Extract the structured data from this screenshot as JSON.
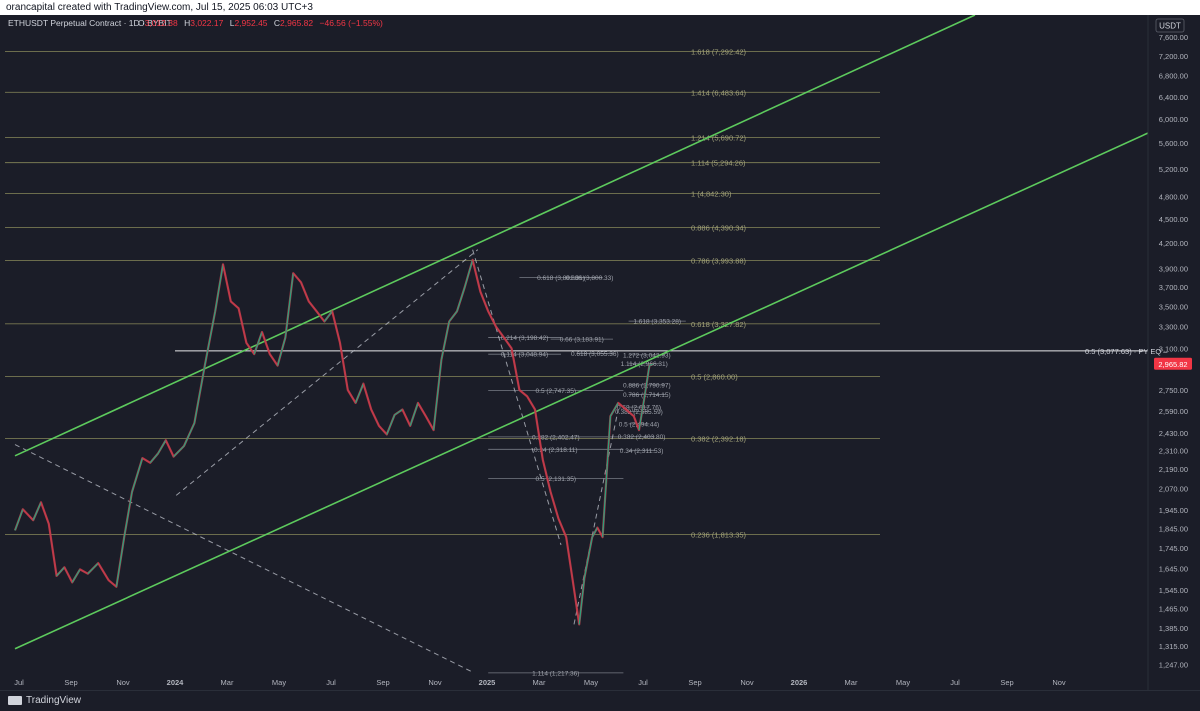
{
  "attribution": "orancapital created with TradingView.com, Jul 15, 2025 06:03 UTC+3",
  "footer_brand": "TradingView",
  "chart_data": {
    "type": "candlestick",
    "legend": {
      "symbol": "ETHUSDT Perpetual Contract · 1D · BYBIT",
      "open_label": "O",
      "open": "3,012.38",
      "high_label": "H",
      "high": "3,022.17",
      "low_label": "L",
      "low": "2,952.45",
      "close_label": "C",
      "close": "2,965.82",
      "change": "−46.56 (−1.55%)"
    },
    "currency": "USDT",
    "last_price": "2,965.82",
    "y_scale": "log",
    "ylim": [
      1210,
      8100
    ],
    "y_ticks": [
      {
        "v": 7600,
        "label": "7,600.00"
      },
      {
        "v": 7200,
        "label": "7,200.00"
      },
      {
        "v": 6800,
        "label": "6,800.00"
      },
      {
        "v": 6400,
        "label": "6,400.00"
      },
      {
        "v": 6000,
        "label": "6,000.00"
      },
      {
        "v": 5600,
        "label": "5,600.00"
      },
      {
        "v": 5200,
        "label": "5,200.00"
      },
      {
        "v": 4800,
        "label": "4,800.00"
      },
      {
        "v": 4500,
        "label": "4,500.00"
      },
      {
        "v": 4200,
        "label": "4,200.00"
      },
      {
        "v": 3900,
        "label": "3,900.00"
      },
      {
        "v": 3700,
        "label": "3,700.00"
      },
      {
        "v": 3500,
        "label": "3,500.00"
      },
      {
        "v": 3300,
        "label": "3,300.00"
      },
      {
        "v": 3100,
        "label": "3,100.00"
      },
      {
        "v": 2750,
        "label": "2,750.00"
      },
      {
        "v": 2590,
        "label": "2,590.00"
      },
      {
        "v": 2430,
        "label": "2,430.00"
      },
      {
        "v": 2310,
        "label": "2,310.00"
      },
      {
        "v": 2190,
        "label": "2,190.00"
      },
      {
        "v": 2070,
        "label": "2,070.00"
      },
      {
        "v": 1945,
        "label": "1,945.00"
      },
      {
        "v": 1845,
        "label": "1,845.00"
      },
      {
        "v": 1745,
        "label": "1,745.00"
      },
      {
        "v": 1645,
        "label": "1,645.00"
      },
      {
        "v": 1545,
        "label": "1,545.00"
      },
      {
        "v": 1465,
        "label": "1,465.00"
      },
      {
        "v": 1385,
        "label": "1,385.00"
      },
      {
        "v": 1315,
        "label": "1,315.00"
      },
      {
        "v": 1247,
        "label": "1,247.00"
      }
    ],
    "x_ticks": [
      {
        "m": 0,
        "label": "Jul"
      },
      {
        "m": 2,
        "label": "Sep"
      },
      {
        "m": 4,
        "label": "Nov"
      },
      {
        "m": 6,
        "label": "2024"
      },
      {
        "m": 8,
        "label": "Mar"
      },
      {
        "m": 10,
        "label": "May"
      },
      {
        "m": 12,
        "label": "Jul"
      },
      {
        "m": 14,
        "label": "Sep"
      },
      {
        "m": 16,
        "label": "Nov"
      },
      {
        "m": 18,
        "label": "2025"
      },
      {
        "m": 20,
        "label": "Mar"
      },
      {
        "m": 22,
        "label": "May"
      },
      {
        "m": 24,
        "label": "Jul"
      },
      {
        "m": 26,
        "label": "Sep"
      },
      {
        "m": 28,
        "label": "Nov"
      },
      {
        "m": 30,
        "label": "2026"
      },
      {
        "m": 32,
        "label": "Mar"
      },
      {
        "m": 34,
        "label": "May"
      },
      {
        "m": 36,
        "label": "Jul"
      },
      {
        "m": 38,
        "label": "Sep"
      },
      {
        "m": 40,
        "label": "Nov"
      }
    ],
    "fib_levels_main": [
      {
        "v": 7292.42,
        "label": "1.618 (7,292.42)"
      },
      {
        "v": 6483.64,
        "label": "1.414 (6,483.64)"
      },
      {
        "v": 5690.72,
        "label": "1.214 (5,690.72)"
      },
      {
        "v": 5294.26,
        "label": "1.114 (5,294.26)"
      },
      {
        "v": 4842.3,
        "label": "1 (4,842.30)"
      },
      {
        "v": 4390.34,
        "label": "0.886 (4,390.34)"
      },
      {
        "v": 3993.88,
        "label": "0.786 (3,993.88)"
      },
      {
        "v": 3327.82,
        "label": "0.618 (3,327.82)"
      },
      {
        "v": 2860.0,
        "label": "0.5 (2,860.00)"
      },
      {
        "v": 2392.18,
        "label": "0.382 (2,392.18)"
      },
      {
        "v": 1813.35,
        "label": "0.236 (1,813.35)"
      }
    ],
    "fib_levels_inner": [
      {
        "v": 3801.31,
        "label": "0.618 (3,801.31)",
        "m0": 19.4,
        "m1": 22.6
      },
      {
        "v": 3800.33,
        "label": "0.886 (3,800.33)",
        "m0": 21.6,
        "m1": 22.6
      },
      {
        "v": 3353.28,
        "label": "1.618 (3,353.28)",
        "m0": 23.6,
        "m1": 25.8
      },
      {
        "v": 3198.42,
        "label": "0.214 (3,198.42)",
        "m0": 18.2,
        "m1": 21.0
      },
      {
        "v": 3183.91,
        "label": "0.66 (3,183.91)",
        "m0": 20.6,
        "m1": 23.0
      },
      {
        "v": 3048.94,
        "label": "0.114 (3,048.94)",
        "m0": 18.2,
        "m1": 21.0
      },
      {
        "v": 3055.36,
        "label": "0.618 (3,055.36)",
        "m0": 21.6,
        "m1": 23.0
      },
      {
        "v": 3042.93,
        "label": "1.272 (3,042.93)",
        "m0": 23.6,
        "m1": 25.0
      },
      {
        "v": 2966.31,
        "label": "1.114 (2,966.31)",
        "m0": 23.6,
        "m1": 24.8
      },
      {
        "v": 2790.97,
        "label": "0.886 (2,790.97)",
        "m0": 23.6,
        "m1": 25.0
      },
      {
        "v": 2747.35,
        "label": "0.5 (2,747.35)",
        "m0": 18.2,
        "m1": 23.4
      },
      {
        "v": 2714.15,
        "label": "0.786 (2,714.15)",
        "m0": 23.6,
        "m1": 25.0
      },
      {
        "v": 2617.76,
        "label": "0.68 (2,617.76)",
        "m0": 23.6,
        "m1": 24.4
      },
      {
        "v": 2585.59,
        "label": "0.382 (2,585.59)",
        "m0": 23.6,
        "m1": 24.4
      },
      {
        "v": 2494.44,
        "label": "0.5 (2,494.44)",
        "m0": 23.6,
        "m1": 24.4
      },
      {
        "v": 2402.47,
        "label": "0.382 (2,402.47)",
        "m0": 18.2,
        "m1": 23.4
      },
      {
        "v": 2403.8,
        "label": "0.382 (2,403.80)",
        "m0": 23.6,
        "m1": 24.6
      },
      {
        "v": 2318.11,
        "label": "0.34 (2,318.11)",
        "m0": 18.2,
        "m1": 23.4
      },
      {
        "v": 2311.53,
        "label": "0.34 (2,311.53)",
        "m0": 23.6,
        "m1": 24.6
      },
      {
        "v": 2131.35,
        "label": "0.5 (2,131.35)",
        "m0": 18.2,
        "m1": 23.4
      },
      {
        "v": 1217.36,
        "label": "1.114 (1,217.36)",
        "m0": 18.2,
        "m1": 23.4
      }
    ],
    "pyeq": {
      "v": 3077.63,
      "label": "0.5 (3,077.63) · PY EQ –"
    },
    "channel_lines": [
      {
        "m0": 0,
        "v0": 2275,
        "m1": 39,
        "v1": 8700
      },
      {
        "m0": 0,
        "v0": 1305,
        "m1": 44.5,
        "v1": 5950
      }
    ],
    "dashed_lines": [
      {
        "m0": 6.2,
        "v0": 2030,
        "m1": 17.8,
        "v1": 4120
      },
      {
        "m0": 0,
        "v0": 2350,
        "m1": 17.6,
        "v1": 1220
      },
      {
        "m0": 17.6,
        "v0": 4120,
        "m1": 21.0,
        "v1": 1760
      },
      {
        "m0": 21.5,
        "v0": 1400,
        "m1": 23.2,
        "v1": 2600
      }
    ],
    "price_path": [
      [
        0,
        1835
      ],
      [
        0.3,
        1950
      ],
      [
        0.7,
        1890
      ],
      [
        1.0,
        1990
      ],
      [
        1.3,
        1870
      ],
      [
        1.6,
        1610
      ],
      [
        1.9,
        1650
      ],
      [
        2.2,
        1580
      ],
      [
        2.5,
        1640
      ],
      [
        2.8,
        1620
      ],
      [
        3.2,
        1670
      ],
      [
        3.6,
        1590
      ],
      [
        3.9,
        1560
      ],
      [
        4.2,
        1800
      ],
      [
        4.5,
        2050
      ],
      [
        4.9,
        2260
      ],
      [
        5.2,
        2230
      ],
      [
        5.5,
        2290
      ],
      [
        5.8,
        2380
      ],
      [
        6.1,
        2270
      ],
      [
        6.5,
        2340
      ],
      [
        6.9,
        2500
      ],
      [
        7.3,
        2950
      ],
      [
        7.7,
        3450
      ],
      [
        8.0,
        3950
      ],
      [
        8.3,
        3550
      ],
      [
        8.6,
        3480
      ],
      [
        8.9,
        3150
      ],
      [
        9.2,
        3050
      ],
      [
        9.5,
        3250
      ],
      [
        9.8,
        3050
      ],
      [
        10.1,
        2950
      ],
      [
        10.4,
        3200
      ],
      [
        10.7,
        3850
      ],
      [
        11.0,
        3750
      ],
      [
        11.3,
        3550
      ],
      [
        11.6,
        3450
      ],
      [
        11.9,
        3350
      ],
      [
        12.2,
        3450
      ],
      [
        12.5,
        3150
      ],
      [
        12.8,
        2750
      ],
      [
        13.1,
        2650
      ],
      [
        13.4,
        2800
      ],
      [
        13.7,
        2600
      ],
      [
        14.0,
        2480
      ],
      [
        14.3,
        2420
      ],
      [
        14.6,
        2560
      ],
      [
        14.9,
        2600
      ],
      [
        15.2,
        2480
      ],
      [
        15.5,
        2650
      ],
      [
        15.8,
        2550
      ],
      [
        16.1,
        2450
      ],
      [
        16.4,
        3000
      ],
      [
        16.7,
        3350
      ],
      [
        17.0,
        3450
      ],
      [
        17.3,
        3700
      ],
      [
        17.6,
        4000
      ],
      [
        17.9,
        3650
      ],
      [
        18.2,
        3450
      ],
      [
        18.5,
        3300
      ],
      [
        18.8,
        3200
      ],
      [
        19.1,
        3100
      ],
      [
        19.4,
        2750
      ],
      [
        19.7,
        2700
      ],
      [
        20.0,
        2600
      ],
      [
        20.3,
        2250
      ],
      [
        20.6,
        2050
      ],
      [
        20.9,
        1900
      ],
      [
        21.2,
        1800
      ],
      [
        21.5,
        1550
      ],
      [
        21.7,
        1400
      ],
      [
        21.9,
        1600
      ],
      [
        22.2,
        1800
      ],
      [
        22.4,
        1850
      ],
      [
        22.6,
        1800
      ],
      [
        22.9,
        2550
      ],
      [
        23.2,
        2650
      ],
      [
        23.5,
        2600
      ],
      [
        23.8,
        2550
      ],
      [
        24.0,
        2450
      ],
      [
        24.2,
        2680
      ],
      [
        24.4,
        2950
      ],
      [
        24.55,
        2965
      ]
    ]
  }
}
